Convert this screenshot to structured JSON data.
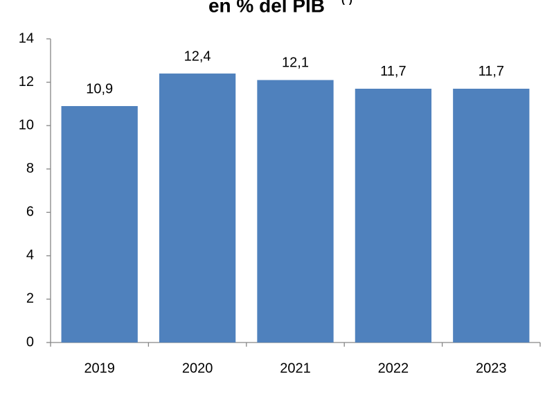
{
  "chart_data": {
    "type": "bar",
    "title": "en % del PIB",
    "title_superscript": "(*)",
    "categories": [
      "2019",
      "2020",
      "2021",
      "2022",
      "2023"
    ],
    "values": [
      10.9,
      12.4,
      12.1,
      11.7,
      11.7
    ],
    "value_labels": [
      "10,9",
      "12,4",
      "12,1",
      "11,7",
      "11,7"
    ],
    "color": "#4f81bd",
    "ylim": [
      0,
      14
    ],
    "yticks": [
      0,
      2,
      4,
      6,
      8,
      10,
      12,
      14
    ],
    "grid": false
  }
}
